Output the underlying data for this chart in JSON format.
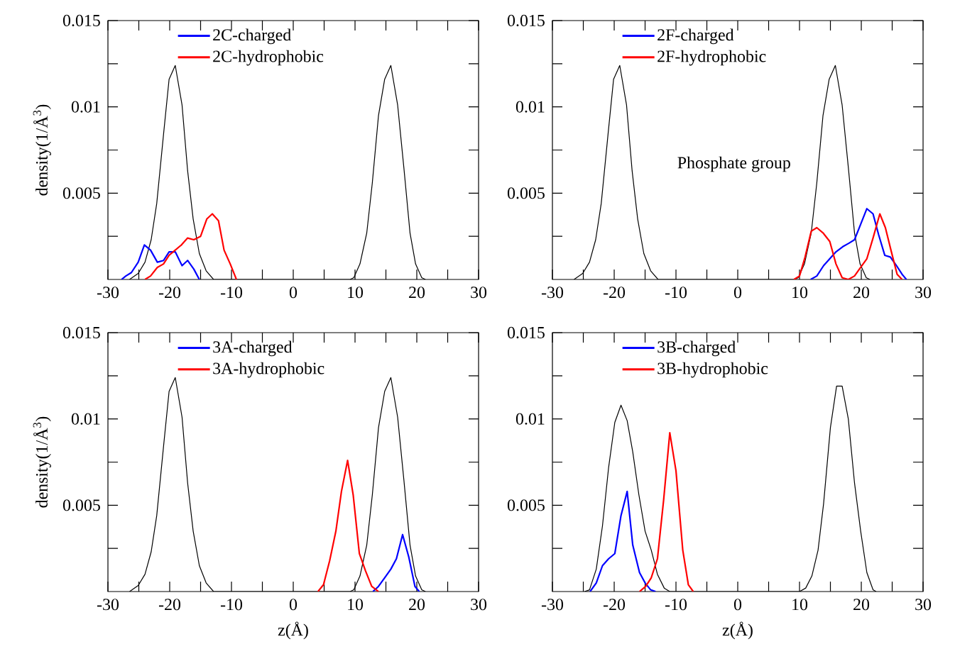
{
  "chart_data": [
    {
      "type": "line",
      "ylabel": "density(1/Å$^{3}$)",
      "xlim": [
        -30,
        30
      ],
      "ylim": [
        0,
        0.015
      ],
      "xticks": [
        -30,
        {
          "value": -25,
          "label": null
        },
        -20,
        {
          "value": -15,
          "label": null
        },
        -10,
        {
          "value": -5,
          "label": null
        },
        0,
        {
          "value": 5,
          "label": null
        },
        10,
        {
          "value": 15,
          "label": null
        },
        20,
        {
          "value": 25,
          "label": null
        },
        30
      ],
      "yticks": [
        {
          "value": 0.0025,
          "label": null
        },
        0.005,
        {
          "value": 0.0075,
          "label": null
        },
        0.01,
        {
          "value": 0.0125,
          "label": null
        },
        0.015
      ],
      "legend": "top",
      "series": [
        {
          "color": "#000000",
          "x": [
            -26.5,
            -25.1,
            -24,
            -23,
            -22.1,
            -21,
            -20.1,
            -19.1,
            -18,
            -17.1,
            -16.2,
            -15.2,
            -14.1,
            -12.9,
            9.2,
            9.8,
            10.8,
            11.9,
            12.8,
            13.8,
            14.8,
            15.8,
            16.9,
            17.9,
            18.9,
            19.8,
            20.8,
            21.4
          ],
          "values": [
            0,
            0.00035,
            0.001,
            0.0023,
            0.0044,
            0.0084,
            0.0116,
            0.0124,
            0.0101,
            0.0063,
            0.0035,
            0.0015,
            0.0005,
            0,
            0,
            0.0001,
            0.0009,
            0.0027,
            0.0056,
            0.0095,
            0.0116,
            0.0124,
            0.0101,
            0.0065,
            0.0027,
            0.0009,
            0.0001,
            0
          ]
        },
        {
          "name": "2C-charged",
          "color": "#0000ff",
          "x": [
            -27.8,
            -27.1,
            -26.2,
            -25.1,
            -24.1,
            -23.1,
            -22,
            -21,
            -20.1,
            -19.1,
            -18,
            -17.1,
            -16.1,
            -15.2
          ],
          "values": [
            0,
            0.0002,
            0.0004,
            0.001,
            0.002,
            0.0017,
            0.001,
            0.0011,
            0.0016,
            0.0016,
            0.0008,
            0.0011,
            0.0006,
            0
          ]
        },
        {
          "name": "2C-hydrophobic",
          "color": "#ff0000",
          "x": [
            -24,
            -23.1,
            -22,
            -21,
            -20.1,
            -19.1,
            -18.1,
            -17.1,
            -16.1,
            -15,
            -14,
            -13.1,
            -12.1,
            -11.2,
            -10.2,
            -9.2
          ],
          "values": [
            0,
            0.0002,
            0.0007,
            0.0009,
            0.0014,
            0.0017,
            0.002,
            0.0024,
            0.0023,
            0.0025,
            0.0035,
            0.0038,
            0.0034,
            0.0017,
            0.0009,
            0
          ]
        }
      ]
    },
    {
      "type": "line",
      "xlim": [
        -30,
        30
      ],
      "ylim": [
        0,
        0.015
      ],
      "xticks": [
        -30,
        {
          "value": -25,
          "label": null
        },
        -20,
        {
          "value": -15,
          "label": null
        },
        -10,
        {
          "value": -5,
          "label": null
        },
        0,
        {
          "value": 5,
          "label": null
        },
        10,
        {
          "value": 15,
          "label": null
        },
        20,
        {
          "value": 25,
          "label": null
        },
        30
      ],
      "yticks": [
        {
          "value": 0.0025,
          "label": null
        },
        0.005,
        {
          "value": 0.0075,
          "label": null
        },
        0.01,
        {
          "value": 0.0125,
          "label": null
        },
        0.015
      ],
      "legend": "top",
      "annotations": [
        "Phosphate group"
      ],
      "series": [
        {
          "color": "#000000",
          "x": [
            -26.5,
            -25.1,
            -24,
            -23,
            -22.1,
            -21,
            -20.1,
            -19.1,
            -18,
            -17.1,
            -16.2,
            -15.2,
            -14.1,
            -12.9,
            9.2,
            9.8,
            10.8,
            11.9,
            12.8,
            13.8,
            14.8,
            15.8,
            16.9,
            17.9,
            18.9,
            19.8,
            20.8,
            21.4
          ],
          "values": [
            0,
            0.00035,
            0.001,
            0.0023,
            0.0044,
            0.0084,
            0.0116,
            0.0124,
            0.0101,
            0.0063,
            0.0035,
            0.0015,
            0.0005,
            0,
            0,
            0.0001,
            0.0009,
            0.0027,
            0.0056,
            0.0095,
            0.0116,
            0.0124,
            0.0101,
            0.0065,
            0.0027,
            0.0009,
            0.0001,
            0
          ]
        },
        {
          "name": "2F-charged",
          "color": "#0000ff",
          "x": [
            11.8,
            12.8,
            13.9,
            14.9,
            15.9,
            17,
            18,
            18.9,
            19.9,
            20.9,
            21.9,
            22.8,
            23.8,
            24.7,
            25.7,
            26.6,
            27.3
          ],
          "values": [
            0,
            0.0002,
            0.0008,
            0.0012,
            0.0016,
            0.0019,
            0.0021,
            0.0023,
            0.0032,
            0.0041,
            0.0038,
            0.0026,
            0.0014,
            0.0013,
            0.0008,
            0.0003,
            0
          ]
        },
        {
          "name": "2F-hydrophobic",
          "color": "#ff0000",
          "x": [
            9.1,
            10,
            10.9,
            11.9,
            12.8,
            13.8,
            14.9,
            15.9,
            16.9,
            17.9,
            18.9,
            19.9,
            20.9,
            21.9,
            23,
            23.9,
            24.8,
            25.8,
            26.6
          ],
          "values": [
            0,
            0.0002,
            0.0013,
            0.0028,
            0.003,
            0.0027,
            0.0022,
            0.0009,
            0.0001,
            0,
            0.0002,
            0.0007,
            0.0012,
            0.0024,
            0.0038,
            0.003,
            0.0017,
            0.0003,
            0
          ]
        }
      ]
    },
    {
      "type": "line",
      "xlabel": "z(Å)",
      "ylabel": "density(1/Å$^{3}$)",
      "xlim": [
        -30,
        30
      ],
      "ylim": [
        0,
        0.015
      ],
      "xticks": [
        -30,
        {
          "value": -25,
          "label": null
        },
        -20,
        {
          "value": -15,
          "label": null
        },
        -10,
        {
          "value": -5,
          "label": null
        },
        0,
        {
          "value": 5,
          "label": null
        },
        10,
        {
          "value": 15,
          "label": null
        },
        20,
        {
          "value": 25,
          "label": null
        },
        30
      ],
      "yticks": [
        {
          "value": 0.0025,
          "label": null
        },
        0.005,
        {
          "value": 0.0075,
          "label": null
        },
        0.01,
        {
          "value": 0.0125,
          "label": null
        },
        0.015
      ],
      "legend": "top",
      "series": [
        {
          "color": "#000000",
          "x": [
            -26.5,
            -25.1,
            -24,
            -23,
            -22.1,
            -21,
            -20.1,
            -19.1,
            -18,
            -17.1,
            -16.2,
            -15.2,
            -14.1,
            -12.9,
            9.2,
            9.8,
            10.8,
            11.9,
            12.8,
            13.8,
            14.8,
            15.8,
            16.9,
            17.9,
            18.9,
            19.8,
            20.8,
            21.4
          ],
          "values": [
            0,
            0.00035,
            0.001,
            0.0023,
            0.0044,
            0.0084,
            0.0116,
            0.0124,
            0.0101,
            0.0063,
            0.0035,
            0.0015,
            0.0005,
            0,
            0,
            0.0001,
            0.0009,
            0.0027,
            0.0056,
            0.0095,
            0.0116,
            0.0124,
            0.0101,
            0.0065,
            0.0027,
            0.0009,
            0.0001,
            0
          ]
        },
        {
          "name": "3A-charged",
          "color": "#0000ff",
          "x": [
            12.9,
            13.8,
            14.8,
            15.8,
            16.7,
            17.7,
            18.7,
            19.7,
            20.4
          ],
          "values": [
            0,
            0.0003,
            0.0008,
            0.0013,
            0.0019,
            0.0033,
            0.002,
            0.0003,
            0
          ]
        },
        {
          "name": "3A-hydrophobic",
          "color": "#ff0000",
          "x": [
            4,
            4.9,
            5.9,
            6.9,
            7.8,
            8.8,
            9.7,
            10.7,
            11.7,
            12.7,
            13.8
          ],
          "values": [
            0,
            0.0004,
            0.0018,
            0.0035,
            0.0058,
            0.0076,
            0.0056,
            0.0022,
            0.0012,
            0.0003,
            0
          ]
        }
      ]
    },
    {
      "type": "line",
      "xlabel": "z(Å)",
      "xlim": [
        -30,
        30
      ],
      "ylim": [
        0,
        0.015
      ],
      "xticks": [
        -30,
        {
          "value": -25,
          "label": null
        },
        -20,
        {
          "value": -15,
          "label": null
        },
        -10,
        {
          "value": -5,
          "label": null
        },
        0,
        {
          "value": 5,
          "label": null
        },
        10,
        {
          "value": 15,
          "label": null
        },
        20,
        {
          "value": 25,
          "label": null
        },
        30
      ],
      "yticks": [
        {
          "value": 0.0025,
          "label": null
        },
        0.005,
        {
          "value": 0.0075,
          "label": null
        },
        0.01,
        {
          "value": 0.0125,
          "label": null
        },
        0.015
      ],
      "legend": "top",
      "series": [
        {
          "color": "#000000",
          "x": [
            -24.8,
            -24,
            -22.9,
            -21.9,
            -20.9,
            -19.9,
            -18.9,
            -17.9,
            -17,
            -16,
            -15,
            -14,
            -13,
            -11.9,
            -11,
            10,
            11,
            12,
            13,
            13.9,
            15,
            16,
            16.9,
            17.9,
            18.9,
            19.9,
            20.9,
            21.9,
            22.4
          ],
          "values": [
            0,
            0.0001,
            0.0013,
            0.0038,
            0.0072,
            0.0098,
            0.0108,
            0.0099,
            0.0081,
            0.0056,
            0.0035,
            0.0024,
            0.001,
            0.0002,
            0,
            0,
            0.0002,
            0.0009,
            0.0024,
            0.0051,
            0.0095,
            0.0119,
            0.0119,
            0.01,
            0.0063,
            0.0035,
            0.0011,
            0.0001,
            0
          ]
        },
        {
          "name": "3B-charged",
          "color": "#0000ff",
          "x": [
            -23.9,
            -22.9,
            -21.9,
            -20.9,
            -19.9,
            -18.9,
            -17.9,
            -17,
            -15.9,
            -15,
            -14.1,
            -13.3
          ],
          "values": [
            0,
            0.0005,
            0.0015,
            0.0019,
            0.0022,
            0.0044,
            0.0058,
            0.0027,
            0.0011,
            0.0005,
            0.0001,
            0
          ]
        },
        {
          "name": "3B-hydrophobic",
          "color": "#ff0000",
          "x": [
            -15.9,
            -14.9,
            -14,
            -13,
            -12,
            -11,
            -10,
            -8.9,
            -8,
            -7.2
          ],
          "values": [
            0,
            0.0003,
            0.0008,
            0.0019,
            0.0053,
            0.0092,
            0.007,
            0.0024,
            0.0004,
            0
          ]
        }
      ]
    }
  ]
}
